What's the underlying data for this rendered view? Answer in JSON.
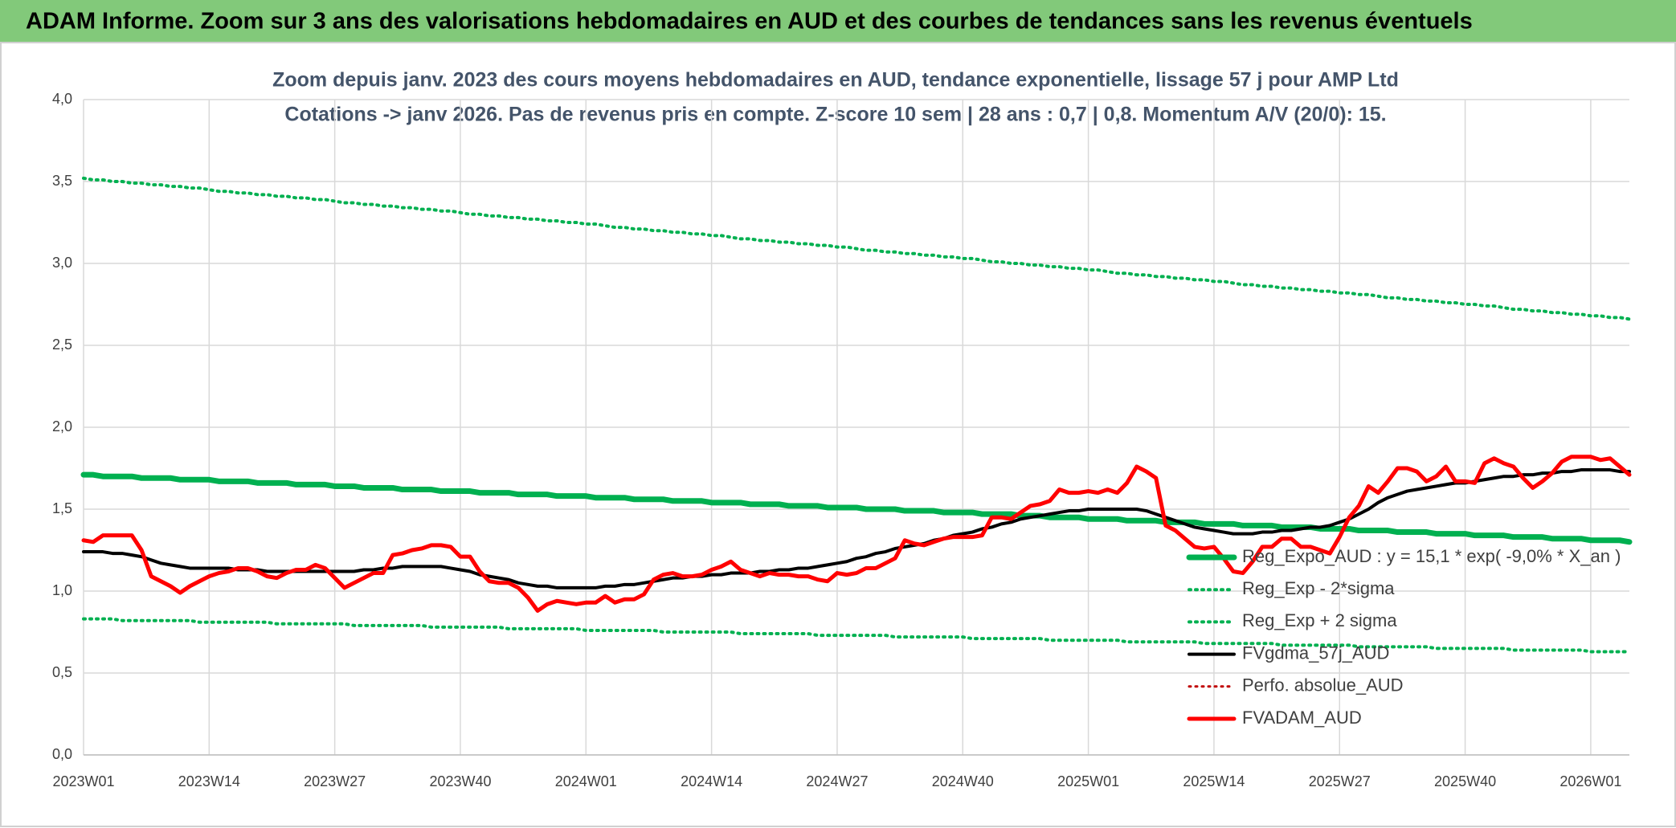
{
  "header": {
    "title": "ADAM Informe. Zoom sur 3 ans des valorisations hebdomadaires en AUD et des courbes de tendances sans les revenus éventuels"
  },
  "chart_data": {
    "type": "line",
    "title": "Zoom depuis janv. 2023 des cours moyens hebdomadaires en AUD, tendance exponentielle, lissage 57 j pour AMP Ltd",
    "subtitle": "Cotations -> janv 2026. Pas de revenus pris en compte. Z-score 10 sem | 28 ans : 0,7 | 0,8. Momentum A/V (20/0): 15.",
    "categories": [
      "2023W01",
      null,
      null,
      null,
      null,
      null,
      null,
      null,
      null,
      null,
      null,
      null,
      null,
      "2023W14",
      null,
      null,
      null,
      null,
      null,
      null,
      null,
      null,
      null,
      null,
      null,
      null,
      "2023W27",
      null,
      null,
      null,
      null,
      null,
      null,
      null,
      null,
      null,
      null,
      null,
      null,
      "2023W40",
      null,
      null,
      null,
      null,
      null,
      null,
      null,
      null,
      null,
      null,
      null,
      null,
      "2024W01",
      null,
      null,
      null,
      null,
      null,
      null,
      null,
      null,
      null,
      null,
      null,
      null,
      "2024W14",
      null,
      null,
      null,
      null,
      null,
      null,
      null,
      null,
      null,
      null,
      null,
      null,
      "2024W27",
      null,
      null,
      null,
      null,
      null,
      null,
      null,
      null,
      null,
      null,
      null,
      null,
      "2024W40",
      null,
      null,
      null,
      null,
      null,
      null,
      null,
      null,
      null,
      null,
      null,
      null,
      "2025W01",
      null,
      null,
      null,
      null,
      null,
      null,
      null,
      null,
      null,
      null,
      null,
      null,
      "2025W14",
      null,
      null,
      null,
      null,
      null,
      null,
      null,
      null,
      null,
      null,
      null,
      null,
      "2025W27",
      null,
      null,
      null,
      null,
      null,
      null,
      null,
      null,
      null,
      null,
      null,
      null,
      "2025W40",
      null,
      null,
      null,
      null,
      null,
      null,
      null,
      null,
      null,
      null,
      null,
      null,
      "2026W01",
      null,
      null,
      null,
      null
    ],
    "ylim": [
      0,
      4
    ],
    "yticks": [
      {
        "value": 0,
        "label": "0,0"
      },
      {
        "value": 0.5,
        "label": "0,5"
      },
      {
        "value": 1,
        "label": "1,0"
      },
      {
        "value": 1.5,
        "label": "1,5"
      },
      {
        "value": 2,
        "label": "2,0"
      },
      {
        "value": 2.5,
        "label": "2,5"
      },
      {
        "value": 3,
        "label": "3,0"
      },
      {
        "value": 3.5,
        "label": "3,5"
      },
      {
        "value": 4,
        "label": "4,0"
      }
    ],
    "grid": true,
    "legend": "lower right",
    "series": [
      {
        "name": "Reg_Expo_AUD : y = 15,1 * exp( -9,0% * X_an )",
        "color": "#00b050",
        "dash": "solid",
        "values": [
          1.71,
          1.71,
          1.7,
          1.7,
          1.7,
          1.7,
          1.69,
          1.69,
          1.69,
          1.69,
          1.68,
          1.68,
          1.68,
          1.68,
          1.67,
          1.67,
          1.67,
          1.67,
          1.66,
          1.66,
          1.66,
          1.66,
          1.65,
          1.65,
          1.65,
          1.65,
          1.64,
          1.64,
          1.64,
          1.63,
          1.63,
          1.63,
          1.63,
          1.62,
          1.62,
          1.62,
          1.62,
          1.61,
          1.61,
          1.61,
          1.61,
          1.6,
          1.6,
          1.6,
          1.6,
          1.59,
          1.59,
          1.59,
          1.59,
          1.58,
          1.58,
          1.58,
          1.58,
          1.57,
          1.57,
          1.57,
          1.57,
          1.56,
          1.56,
          1.56,
          1.56,
          1.55,
          1.55,
          1.55,
          1.55,
          1.54,
          1.54,
          1.54,
          1.54,
          1.53,
          1.53,
          1.53,
          1.53,
          1.52,
          1.52,
          1.52,
          1.52,
          1.51,
          1.51,
          1.51,
          1.51,
          1.5,
          1.5,
          1.5,
          1.5,
          1.49,
          1.49,
          1.49,
          1.49,
          1.48,
          1.48,
          1.48,
          1.48,
          1.47,
          1.47,
          1.47,
          1.47,
          1.46,
          1.46,
          1.46,
          1.45,
          1.45,
          1.45,
          1.45,
          1.44,
          1.44,
          1.44,
          1.44,
          1.43,
          1.43,
          1.43,
          1.43,
          1.42,
          1.42,
          1.42,
          1.42,
          1.41,
          1.41,
          1.41,
          1.41,
          1.4,
          1.4,
          1.4,
          1.4,
          1.39,
          1.39,
          1.39,
          1.39,
          1.38,
          1.38,
          1.38,
          1.38,
          1.37,
          1.37,
          1.37,
          1.37,
          1.36,
          1.36,
          1.36,
          1.36,
          1.35,
          1.35,
          1.35,
          1.35,
          1.34,
          1.34,
          1.34,
          1.34,
          1.33,
          1.33,
          1.33,
          1.33,
          1.32,
          1.32,
          1.32,
          1.32,
          1.31,
          1.31,
          1.31,
          1.31,
          1.3
        ]
      },
      {
        "name": "Reg_Exp - 2*sigma",
        "color": "#00b050",
        "dash": "dotted",
        "values": [
          0.83,
          0.83,
          0.83,
          0.83,
          0.82,
          0.82,
          0.82,
          0.82,
          0.82,
          0.82,
          0.82,
          0.82,
          0.81,
          0.81,
          0.81,
          0.81,
          0.81,
          0.81,
          0.81,
          0.81,
          0.8,
          0.8,
          0.8,
          0.8,
          0.8,
          0.8,
          0.8,
          0.8,
          0.79,
          0.79,
          0.79,
          0.79,
          0.79,
          0.79,
          0.79,
          0.79,
          0.78,
          0.78,
          0.78,
          0.78,
          0.78,
          0.78,
          0.78,
          0.78,
          0.77,
          0.77,
          0.77,
          0.77,
          0.77,
          0.77,
          0.77,
          0.77,
          0.76,
          0.76,
          0.76,
          0.76,
          0.76,
          0.76,
          0.76,
          0.76,
          0.75,
          0.75,
          0.75,
          0.75,
          0.75,
          0.75,
          0.75,
          0.75,
          0.74,
          0.74,
          0.74,
          0.74,
          0.74,
          0.74,
          0.74,
          0.74,
          0.73,
          0.73,
          0.73,
          0.73,
          0.73,
          0.73,
          0.73,
          0.73,
          0.72,
          0.72,
          0.72,
          0.72,
          0.72,
          0.72,
          0.72,
          0.72,
          0.71,
          0.71,
          0.71,
          0.71,
          0.71,
          0.71,
          0.71,
          0.71,
          0.7,
          0.7,
          0.7,
          0.7,
          0.7,
          0.7,
          0.7,
          0.7,
          0.69,
          0.69,
          0.69,
          0.69,
          0.69,
          0.69,
          0.69,
          0.69,
          0.68,
          0.68,
          0.68,
          0.68,
          0.68,
          0.68,
          0.68,
          0.68,
          0.67,
          0.67,
          0.67,
          0.67,
          0.67,
          0.67,
          0.67,
          0.67,
          0.66,
          0.66,
          0.66,
          0.66,
          0.66,
          0.66,
          0.66,
          0.66,
          0.65,
          0.65,
          0.65,
          0.65,
          0.65,
          0.65,
          0.65,
          0.65,
          0.64,
          0.64,
          0.64,
          0.64,
          0.64,
          0.64,
          0.64,
          0.64,
          0.63,
          0.63,
          0.63,
          0.63,
          0.63
        ]
      },
      {
        "name": "Reg_Exp + 2 sigma",
        "color": "#00b050",
        "dash": "dotted",
        "values": [
          3.52,
          3.51,
          3.51,
          3.5,
          3.5,
          3.49,
          3.49,
          3.48,
          3.48,
          3.47,
          3.47,
          3.46,
          3.46,
          3.45,
          3.44,
          3.44,
          3.43,
          3.43,
          3.42,
          3.42,
          3.41,
          3.41,
          3.4,
          3.4,
          3.39,
          3.39,
          3.38,
          3.37,
          3.37,
          3.36,
          3.36,
          3.35,
          3.35,
          3.34,
          3.34,
          3.33,
          3.33,
          3.32,
          3.32,
          3.31,
          3.3,
          3.3,
          3.29,
          3.29,
          3.28,
          3.28,
          3.27,
          3.27,
          3.26,
          3.26,
          3.25,
          3.25,
          3.24,
          3.24,
          3.23,
          3.22,
          3.22,
          3.21,
          3.21,
          3.2,
          3.2,
          3.19,
          3.19,
          3.18,
          3.18,
          3.17,
          3.17,
          3.16,
          3.15,
          3.15,
          3.14,
          3.14,
          3.13,
          3.13,
          3.12,
          3.12,
          3.11,
          3.11,
          3.1,
          3.1,
          3.09,
          3.08,
          3.08,
          3.07,
          3.07,
          3.06,
          3.06,
          3.05,
          3.05,
          3.04,
          3.04,
          3.03,
          3.03,
          3.02,
          3.01,
          3.01,
          3.0,
          3.0,
          2.99,
          2.99,
          2.98,
          2.98,
          2.97,
          2.97,
          2.96,
          2.96,
          2.95,
          2.94,
          2.94,
          2.93,
          2.93,
          2.92,
          2.92,
          2.91,
          2.91,
          2.9,
          2.9,
          2.89,
          2.89,
          2.88,
          2.87,
          2.87,
          2.86,
          2.86,
          2.85,
          2.85,
          2.84,
          2.84,
          2.83,
          2.83,
          2.82,
          2.82,
          2.81,
          2.81,
          2.8,
          2.79,
          2.79,
          2.78,
          2.78,
          2.77,
          2.77,
          2.76,
          2.76,
          2.75,
          2.75,
          2.74,
          2.74,
          2.73,
          2.72,
          2.72,
          2.71,
          2.71,
          2.7,
          2.7,
          2.69,
          2.69,
          2.68,
          2.68,
          2.67,
          2.67,
          2.66
        ]
      },
      {
        "name": "FVgdma_57j_AUD",
        "color": "#000000",
        "dash": "solid",
        "values": [
          1.24,
          1.24,
          1.24,
          1.23,
          1.23,
          1.22,
          1.21,
          1.19,
          1.17,
          1.16,
          1.15,
          1.14,
          1.14,
          1.14,
          1.14,
          1.14,
          1.13,
          1.13,
          1.13,
          1.12,
          1.12,
          1.12,
          1.12,
          1.12,
          1.12,
          1.12,
          1.12,
          1.12,
          1.12,
          1.13,
          1.13,
          1.14,
          1.14,
          1.15,
          1.15,
          1.15,
          1.15,
          1.15,
          1.14,
          1.13,
          1.12,
          1.1,
          1.09,
          1.08,
          1.07,
          1.05,
          1.04,
          1.03,
          1.03,
          1.02,
          1.02,
          1.02,
          1.02,
          1.02,
          1.03,
          1.03,
          1.04,
          1.04,
          1.05,
          1.06,
          1.07,
          1.08,
          1.08,
          1.09,
          1.09,
          1.1,
          1.1,
          1.11,
          1.11,
          1.11,
          1.12,
          1.12,
          1.13,
          1.13,
          1.14,
          1.14,
          1.15,
          1.16,
          1.17,
          1.18,
          1.2,
          1.21,
          1.23,
          1.24,
          1.26,
          1.27,
          1.28,
          1.29,
          1.31,
          1.32,
          1.34,
          1.35,
          1.36,
          1.38,
          1.39,
          1.41,
          1.42,
          1.44,
          1.45,
          1.46,
          1.47,
          1.48,
          1.49,
          1.49,
          1.5,
          1.5,
          1.5,
          1.5,
          1.5,
          1.5,
          1.49,
          1.47,
          1.45,
          1.43,
          1.41,
          1.39,
          1.38,
          1.37,
          1.36,
          1.35,
          1.35,
          1.35,
          1.36,
          1.36,
          1.37,
          1.37,
          1.38,
          1.39,
          1.39,
          1.4,
          1.42,
          1.44,
          1.47,
          1.5,
          1.54,
          1.57,
          1.59,
          1.61,
          1.62,
          1.63,
          1.64,
          1.65,
          1.66,
          1.66,
          1.67,
          1.68,
          1.69,
          1.7,
          1.7,
          1.71,
          1.71,
          1.72,
          1.72,
          1.73,
          1.73,
          1.74,
          1.74,
          1.74,
          1.74,
          1.73,
          1.73
        ]
      },
      {
        "name": "Perfo. absolue_AUD",
        "color": "#c00000",
        "dash": "dotted",
        "values": [
          null,
          null,
          null,
          null,
          null,
          null,
          null,
          null,
          null,
          null,
          null,
          null,
          null,
          null,
          null,
          null,
          null,
          null,
          null,
          null,
          null,
          null,
          null,
          null,
          null,
          null,
          null,
          null,
          null,
          null,
          null,
          null,
          null,
          null,
          null,
          null,
          null,
          null,
          null,
          null,
          null,
          null,
          null,
          null,
          null,
          null,
          null,
          null,
          null,
          null,
          null,
          null,
          null,
          null,
          null,
          null,
          null,
          null,
          null,
          null,
          null,
          null,
          null,
          null,
          null,
          null,
          null,
          null,
          null,
          null,
          null,
          null,
          null,
          null,
          null,
          null,
          null,
          null,
          null,
          null,
          null,
          null,
          null,
          null,
          null,
          null,
          null,
          null,
          null,
          null,
          null,
          null,
          null,
          null,
          null,
          null,
          null,
          null,
          null,
          null,
          null,
          null,
          null,
          null,
          null,
          null,
          null,
          null,
          null,
          null,
          null,
          null,
          null,
          null,
          null,
          null,
          null,
          null,
          null,
          null,
          null,
          null,
          null,
          null,
          null,
          null,
          null,
          null,
          null,
          null,
          null,
          null,
          null,
          null,
          null,
          null,
          null,
          null,
          null,
          null,
          null,
          null,
          null,
          null,
          null,
          null,
          null,
          null,
          null,
          null,
          null,
          null,
          null,
          null,
          null,
          null,
          null,
          null,
          null,
          null,
          null
        ]
      },
      {
        "name": "FVADAM_AUD",
        "color": "#ff0000",
        "dash": "solid",
        "values": [
          1.31,
          1.3,
          1.34,
          1.34,
          1.34,
          1.34,
          1.25,
          1.09,
          1.06,
          1.03,
          0.99,
          1.03,
          1.06,
          1.09,
          1.11,
          1.12,
          1.14,
          1.14,
          1.12,
          1.09,
          1.08,
          1.11,
          1.13,
          1.13,
          1.16,
          1.14,
          1.08,
          1.02,
          1.05,
          1.08,
          1.11,
          1.11,
          1.22,
          1.23,
          1.25,
          1.26,
          1.28,
          1.28,
          1.27,
          1.21,
          1.21,
          1.12,
          1.06,
          1.05,
          1.05,
          1.02,
          0.96,
          0.88,
          0.92,
          0.94,
          0.93,
          0.92,
          0.93,
          0.93,
          0.97,
          0.93,
          0.95,
          0.95,
          0.98,
          1.07,
          1.1,
          1.11,
          1.09,
          1.09,
          1.1,
          1.13,
          1.15,
          1.18,
          1.13,
          1.11,
          1.09,
          1.11,
          1.1,
          1.1,
          1.09,
          1.09,
          1.07,
          1.06,
          1.11,
          1.1,
          1.11,
          1.14,
          1.14,
          1.17,
          1.2,
          1.31,
          1.29,
          1.28,
          1.3,
          1.32,
          1.33,
          1.33,
          1.33,
          1.34,
          1.45,
          1.45,
          1.44,
          1.48,
          1.52,
          1.53,
          1.55,
          1.62,
          1.6,
          1.6,
          1.61,
          1.6,
          1.62,
          1.6,
          1.66,
          1.76,
          1.73,
          1.69,
          1.4,
          1.37,
          1.32,
          1.27,
          1.26,
          1.27,
          1.2,
          1.12,
          1.11,
          1.18,
          1.27,
          1.27,
          1.32,
          1.32,
          1.27,
          1.27,
          1.25,
          1.23,
          1.33,
          1.45,
          1.52,
          1.64,
          1.6,
          1.67,
          1.75,
          1.75,
          1.73,
          1.67,
          1.7,
          1.76,
          1.67,
          1.67,
          1.66,
          1.78,
          1.81,
          1.78,
          1.76,
          1.69,
          1.63,
          1.67,
          1.72,
          1.79,
          1.82,
          1.82,
          1.82,
          1.8,
          1.81,
          1.76,
          1.71
        ]
      }
    ]
  }
}
